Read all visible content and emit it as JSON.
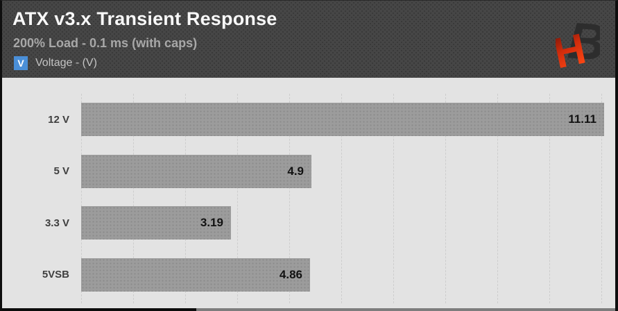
{
  "header": {
    "title": "ATX v3.x Transient Response",
    "subtitle": "200% Load - 0.1 ms (with caps)",
    "legend": {
      "icon_letter": "V",
      "label": "Voltage - (V)",
      "swatch_color": "#4a8fd8"
    },
    "logo_name": "hardware-busters-hb-logo"
  },
  "chart_data": {
    "type": "bar",
    "orientation": "horizontal",
    "title": "ATX v3.x Transient Response",
    "subtitle": "200% Load - 0.1 ms (with caps)",
    "legend_entries": [
      "Voltage - (V)"
    ],
    "categories": [
      "12 V",
      "5 V",
      "3.3 V",
      "5VSB"
    ],
    "values": [
      11.11,
      4.9,
      3.19,
      4.86
    ],
    "value_labels": [
      "11.11",
      "4.9",
      "3.19",
      "4.86"
    ],
    "xlabel": "",
    "ylabel": "",
    "xlim": [
      0,
      11.17
    ],
    "grid": "vertical-dashed",
    "gridline_count": 11,
    "legend_position": "top-left",
    "bar_color": "#9c9c9c",
    "plot_bg": "#e3e3e3",
    "header_bg": "#464646"
  },
  "colors": {
    "title": "#f8f8f8",
    "subtitle": "#a8a8a8",
    "legend_text": "#c4c4c4",
    "category_label": "#3f3f3f",
    "value_label": "#121212",
    "gridline": "#cdcdcd",
    "logo_orange": "#ff4914",
    "logo_dark": "#2d2d2d"
  }
}
